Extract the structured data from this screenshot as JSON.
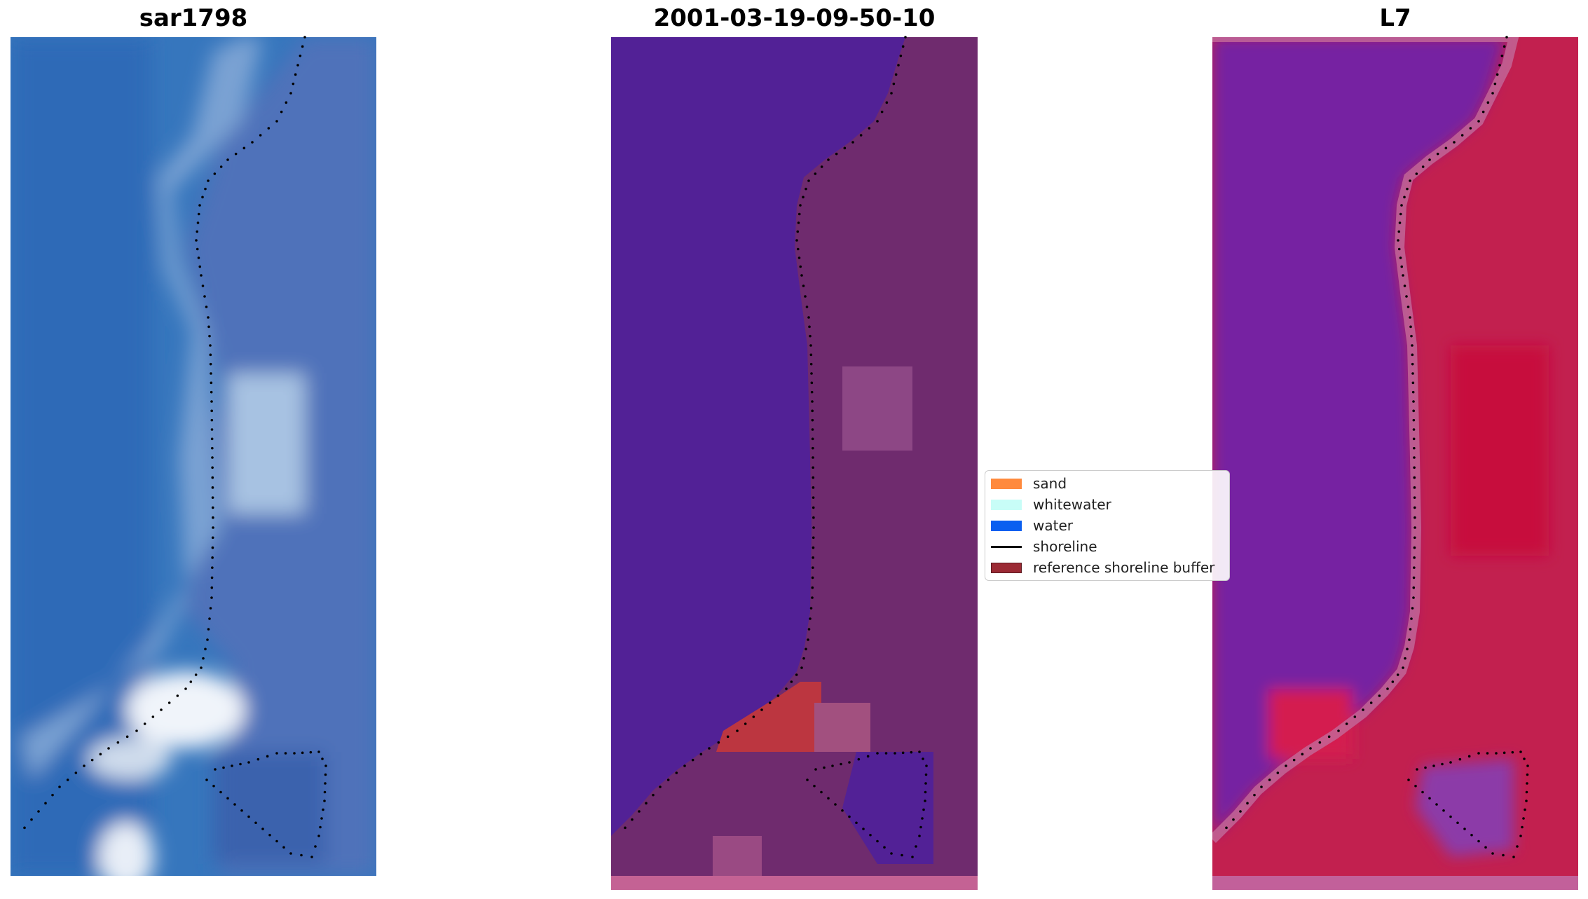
{
  "panels": [
    {
      "title": "sar1798"
    },
    {
      "title": "2001-03-19-09-50-10"
    },
    {
      "title": "L7"
    }
  ],
  "legend": {
    "items": [
      {
        "label": "sand",
        "color": "#ff8a3d",
        "kind": "patch"
      },
      {
        "label": "whitewater",
        "color": "#c8fdf7",
        "kind": "patch"
      },
      {
        "label": "water",
        "color": "#0a5ff0",
        "kind": "patch"
      },
      {
        "label": "shoreline",
        "color": "#000000",
        "kind": "line"
      },
      {
        "label": "reference shoreline buffer",
        "color": "#9b2a34",
        "kind": "patch"
      }
    ]
  },
  "colors": {
    "rgb_water": "#3b78c0",
    "rgb_sand": "#8fb1d8",
    "rgb_whitewater": "#f3f7fb",
    "class_water": "#522196",
    "class_land": "#6f2b6e",
    "class_land_light": "#8d4785",
    "class_buffer": "#bc3640",
    "class_strip": "#c46294",
    "index_purple": "#7b24a3",
    "index_red": "#c61443"
  }
}
